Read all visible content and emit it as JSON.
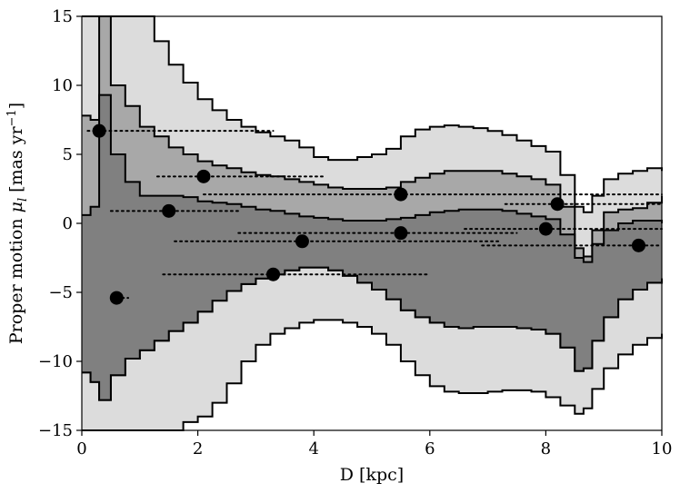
{
  "chart_data": {
    "type": "scatter",
    "xlabel": "D [kpc]",
    "ylabel_main": "Proper motion ",
    "ylabel_symbol": "μ",
    "ylabel_sub": "l",
    "ylabel_unit_open": " [mas yr",
    "ylabel_unit_exp": "−1",
    "ylabel_unit_close": "]",
    "xlim": [
      0,
      10
    ],
    "ylim": [
      -15,
      15
    ],
    "xticks": [
      0,
      2,
      4,
      6,
      8,
      10
    ],
    "xtick_labels": [
      "0",
      "2",
      "4",
      "6",
      "8",
      "10"
    ],
    "yticks": [
      -15,
      -10,
      -5,
      0,
      5,
      10,
      15
    ],
    "ytick_labels": [
      "−15",
      "−10",
      "−5",
      "0",
      "5",
      "10",
      "15"
    ],
    "grid": false,
    "bands": [
      {
        "name": "outer",
        "color": "#dcdcdc",
        "x": [
          0.0,
          0.15,
          0.3,
          0.5,
          0.75,
          1.0,
          1.25,
          1.5,
          1.75,
          2.0,
          2.25,
          2.5,
          2.75,
          3.0,
          3.25,
          3.5,
          3.75,
          4.0,
          4.25,
          4.5,
          4.75,
          5.0,
          5.25,
          5.5,
          5.75,
          6.0,
          6.25,
          6.5,
          6.75,
          7.0,
          7.25,
          7.5,
          7.75,
          8.0,
          8.25,
          8.5,
          8.65,
          8.8,
          9.0,
          9.25,
          9.5,
          9.75,
          10.0
        ],
        "upper": [
          15,
          15,
          15,
          15,
          15,
          15,
          13.2,
          11.5,
          10.2,
          9.0,
          8.2,
          7.5,
          7.0,
          6.6,
          6.3,
          6.0,
          5.5,
          4.8,
          4.6,
          4.6,
          4.8,
          5.0,
          5.4,
          6.3,
          6.8,
          7.0,
          7.1,
          7.0,
          6.9,
          6.7,
          6.4,
          6.0,
          5.6,
          5.2,
          3.5,
          1.2,
          0.8,
          2.0,
          3.2,
          3.6,
          3.8,
          4.0,
          3.8
        ],
        "lower": [
          -15,
          -15,
          -15,
          -15,
          -15,
          -15,
          -15,
          -15,
          -14.4,
          -14.0,
          -13.0,
          -11.6,
          -10.0,
          -8.8,
          -8.0,
          -7.6,
          -7.2,
          -7.0,
          -7.0,
          -7.2,
          -7.5,
          -8.0,
          -8.8,
          -10.0,
          -11.0,
          -11.8,
          -12.2,
          -12.3,
          -12.3,
          -12.2,
          -12.1,
          -12.1,
          -12.2,
          -12.6,
          -13.2,
          -13.8,
          -13.4,
          -12.0,
          -10.5,
          -9.5,
          -8.8,
          -8.3,
          -8.0
        ]
      },
      {
        "name": "middle",
        "color": "#a8a8a8",
        "x": [
          0.0,
          0.15,
          0.3,
          0.5,
          0.75,
          1.0,
          1.25,
          1.5,
          1.75,
          2.0,
          2.25,
          2.5,
          2.75,
          3.0,
          3.25,
          3.5,
          3.75,
          4.0,
          4.25,
          4.5,
          4.75,
          5.0,
          5.25,
          5.5,
          5.75,
          6.0,
          6.25,
          6.5,
          6.75,
          7.0,
          7.25,
          7.5,
          7.75,
          8.0,
          8.25,
          8.5,
          8.65,
          8.8,
          9.0,
          9.25,
          9.5,
          9.75,
          10.0
        ],
        "upper": [
          7.8,
          7.5,
          15,
          10.0,
          8.5,
          7.0,
          6.3,
          5.5,
          5.0,
          4.5,
          4.2,
          4.0,
          3.7,
          3.5,
          3.4,
          3.2,
          3.0,
          2.8,
          2.6,
          2.5,
          2.5,
          2.5,
          2.6,
          3.0,
          3.3,
          3.6,
          3.8,
          3.8,
          3.8,
          3.8,
          3.6,
          3.4,
          3.2,
          2.8,
          1.2,
          -1.8,
          -2.4,
          -0.5,
          0.8,
          1.0,
          1.1,
          1.5,
          2.0
        ],
        "lower": [
          -10.8,
          -11.5,
          -12.8,
          -11.0,
          -9.8,
          -9.2,
          -8.5,
          -7.8,
          -7.2,
          -6.4,
          -5.6,
          -4.9,
          -4.4,
          -4.0,
          -3.7,
          -3.4,
          -3.2,
          -3.2,
          -3.4,
          -3.8,
          -4.3,
          -4.8,
          -5.5,
          -6.3,
          -6.8,
          -7.2,
          -7.5,
          -7.6,
          -7.5,
          -7.5,
          -7.5,
          -7.6,
          -7.7,
          -8.0,
          -9.0,
          -10.7,
          -10.5,
          -8.5,
          -6.8,
          -5.5,
          -4.8,
          -4.3,
          -4.0
        ]
      },
      {
        "name": "inner",
        "color": "#808080",
        "x": [
          0.0,
          0.15,
          0.3,
          0.5,
          0.75,
          1.0,
          1.25,
          1.5,
          1.75,
          2.0,
          2.25,
          2.5,
          2.75,
          3.0,
          3.25,
          3.5,
          3.75,
          4.0,
          4.25,
          4.5,
          4.75,
          5.0,
          5.25,
          5.5,
          5.75,
          6.0,
          6.25,
          6.5,
          6.75,
          7.0,
          7.25,
          7.5,
          7.75,
          8.0,
          8.25,
          8.5,
          8.65,
          8.8,
          9.0,
          9.25,
          9.5,
          9.75,
          10.0
        ],
        "upper": [
          0.6,
          1.2,
          9.3,
          5.0,
          3.0,
          2.0,
          2.0,
          2.0,
          1.9,
          1.6,
          1.5,
          1.4,
          1.2,
          1.0,
          0.9,
          0.7,
          0.5,
          0.4,
          0.3,
          0.2,
          0.2,
          0.2,
          0.3,
          0.4,
          0.6,
          0.8,
          0.9,
          1.0,
          1.0,
          1.0,
          0.9,
          0.7,
          0.5,
          0.3,
          -0.8,
          -2.5,
          -2.8,
          -1.5,
          -0.5,
          0.0,
          0.2,
          0.2,
          0.0
        ],
        "lower": [
          -10.8,
          -11.5,
          -12.8,
          -11.0,
          -9.8,
          -9.2,
          -8.5,
          -7.8,
          -7.2,
          -6.4,
          -5.6,
          -4.9,
          -4.4,
          -4.0,
          -3.7,
          -3.4,
          -3.2,
          -3.2,
          -3.4,
          -3.8,
          -4.3,
          -4.8,
          -5.5,
          -6.3,
          -6.8,
          -7.2,
          -7.5,
          -7.6,
          -7.5,
          -7.5,
          -7.5,
          -7.6,
          -7.7,
          -8.0,
          -9.0,
          -10.7,
          -10.5,
          -8.5,
          -6.8,
          -5.5,
          -4.8,
          -4.3,
          -4.0
        ]
      }
    ],
    "points": [
      {
        "x": 0.3,
        "y": 6.7,
        "xmin": 0.1,
        "xmax": 3.3
      },
      {
        "x": 2.1,
        "y": 3.4,
        "xmin": 1.3,
        "xmax": 4.2
      },
      {
        "x": 1.5,
        "y": 0.9,
        "xmin": 0.5,
        "xmax": 2.7
      },
      {
        "x": 5.5,
        "y": 2.1,
        "xmin": 2.1,
        "xmax": 10.0
      },
      {
        "x": 8.2,
        "y": 1.4,
        "xmin": 7.3,
        "xmax": 10.0
      },
      {
        "x": 5.5,
        "y": -0.7,
        "xmin": 2.7,
        "xmax": 7.5
      },
      {
        "x": 8.0,
        "y": -0.4,
        "xmin": 6.6,
        "xmax": 10.0
      },
      {
        "x": 3.8,
        "y": -1.3,
        "xmin": 1.6,
        "xmax": 7.2
      },
      {
        "x": 9.6,
        "y": -1.6,
        "xmin": 6.9,
        "xmax": 10.0
      },
      {
        "x": 3.3,
        "y": -3.7,
        "xmin": 1.4,
        "xmax": 6.0
      },
      {
        "x": 0.6,
        "y": -5.4,
        "xmin": 0.6,
        "xmax": 0.8
      }
    ]
  }
}
